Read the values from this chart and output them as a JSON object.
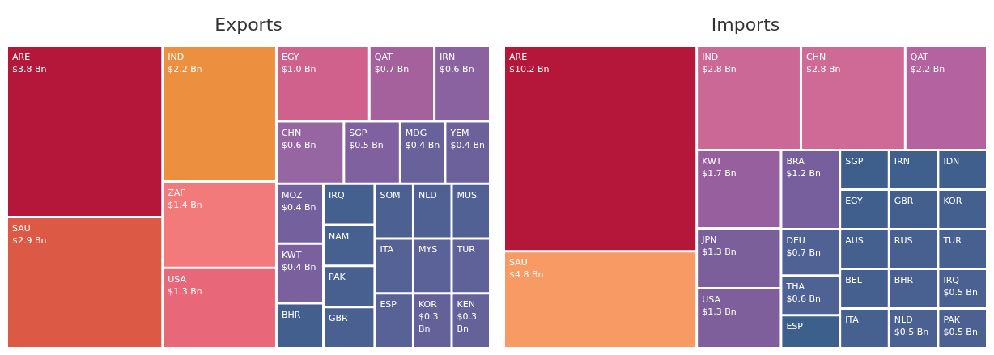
{
  "chart_data": [
    {
      "type": "other",
      "title": "Exports",
      "categories": [
        "ARE",
        "SAU",
        "IND",
        "ZAF",
        "USA",
        "EGY",
        "QAT",
        "CHN",
        "IRN",
        "SGP",
        "KWT",
        "MOZ",
        "YEM",
        "MDG",
        "KEN",
        "KOR",
        "TUR",
        "MYS",
        "ESP",
        "ITA",
        "MUS",
        "NLD",
        "SOM",
        "GBR",
        "PAK",
        "NAM",
        "IRQ",
        "BHR"
      ],
      "values": [
        3.8,
        2.9,
        2.2,
        1.4,
        1.3,
        1.0,
        0.7,
        0.6,
        0.6,
        0.5,
        0.4,
        0.4,
        0.4,
        0.4,
        0.3,
        0.3,
        null,
        null,
        null,
        null,
        null,
        null,
        null,
        null,
        null,
        null,
        null,
        null
      ],
      "value_labels": [
        "$3.8 Bn",
        "$2.9 Bn",
        "$2.2 Bn",
        "$1.4 Bn",
        "$1.3 Bn",
        "$1.0 Bn",
        "$0.7 Bn",
        "$0.6 Bn",
        "$0.6 Bn",
        "$0.5 Bn",
        "$0.4 Bn",
        "$0.4 Bn",
        "$0.4 Bn",
        "$0.4 Bn",
        "$0.3 Bn",
        "$0.3 Bn",
        null,
        null,
        null,
        null,
        null,
        null,
        null,
        null,
        null,
        null,
        null,
        null
      ],
      "colors": [
        "#b5173b",
        "#dc5a45",
        "#ec8f3f",
        "#f27a7a",
        "#e8687a",
        "#d0618c",
        "#a4619c",
        "#9566a2",
        "#8a62a0",
        "#7f619f",
        "#7a609d",
        "#74609c",
        "#6c619b",
        "#68619a",
        "#656199",
        "#636198",
        "#5f6298",
        "#5b6297",
        "#586296",
        "#556295",
        "#526194",
        "#4f6193",
        "#4c6092",
        "#4a6091",
        "#486090",
        "#46608f",
        "#44608e",
        "#425f8d"
      ]
    },
    {
      "type": "other",
      "title": "Imports",
      "categories": [
        "ARE",
        "SAU",
        "CHN",
        "IND",
        "QAT",
        "KWT",
        "USA",
        "JPN",
        "BRA",
        "DEU",
        "THA",
        "PAK",
        "IRQ",
        "NLD",
        "BHR",
        "TUR",
        "RUS",
        "ITA",
        "BEL",
        "AUS",
        "KOR",
        "GBR",
        "EGY",
        "IDN",
        "IRN",
        "SGP",
        "ESP"
      ],
      "values": [
        10.2,
        4.8,
        2.8,
        2.8,
        2.2,
        1.7,
        1.3,
        1.3,
        1.2,
        0.7,
        0.6,
        0.5,
        0.5,
        0.5,
        null,
        null,
        null,
        null,
        null,
        null,
        null,
        null,
        null,
        null,
        null,
        null,
        null
      ],
      "value_labels": [
        "$10.2 Bn",
        "$4.8 Bn",
        "$2.8 Bn",
        "$2.8 Bn",
        "$2.2 Bn",
        "$1.7 Bn",
        "$1.3 Bn",
        "$1.3 Bn",
        "$1.2 Bn",
        "$0.7 Bn",
        "$0.6 Bn",
        "$0.5 Bn",
        "$0.5 Bn",
        "$0.5 Bn",
        null,
        null,
        null,
        null,
        null,
        null,
        null,
        null,
        null,
        null,
        null,
        null,
        null
      ],
      "colors": [
        "#b5173b",
        "#f79a63",
        "#cf6a97",
        "#cc6895",
        "#b463a0",
        "#985f9f",
        "#7e5f9c",
        "#7a5f9b",
        "#765f9c",
        "#4f6293",
        "#4e6293",
        "#4c6192",
        "#4b6192",
        "#4a6191",
        "#496191",
        "#486090",
        "#476090",
        "#46608f",
        "#45608f",
        "#44608e",
        "#43608e",
        "#425f8d",
        "#415f8d",
        "#405f8c",
        "#3f5f8c",
        "#3e5f8b",
        "#3d5f8b"
      ]
    }
  ]
}
